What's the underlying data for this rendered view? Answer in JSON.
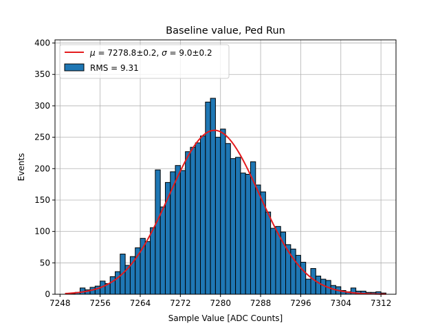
{
  "chart_data": {
    "type": "bar",
    "title": "Baseline value, Ped Run",
    "xlabel": "Sample Value [ADC Counts]",
    "ylabel": "Events",
    "xlim": [
      7247,
      7315
    ],
    "ylim": [
      0,
      405
    ],
    "xticks": [
      7248,
      7256,
      7264,
      7272,
      7280,
      7288,
      7296,
      7304,
      7312
    ],
    "yticks": [
      0,
      50,
      100,
      150,
      200,
      250,
      300,
      350,
      400
    ],
    "grid": true,
    "legend_position": "top-left",
    "histogram": {
      "name": "RMS = 9.31",
      "color": "#1f77b4",
      "edgecolor": "#000000",
      "bin_start": 7248,
      "bin_width": 1,
      "counts": [
        0,
        0,
        1,
        3,
        10,
        7,
        11,
        13,
        21,
        17,
        28,
        36,
        64,
        46,
        60,
        74,
        89,
        84,
        106,
        198,
        139,
        178,
        195,
        205,
        197,
        227,
        234,
        241,
        252,
        306,
        312,
        250,
        263,
        240,
        216,
        218,
        193,
        191,
        211,
        174,
        163,
        131,
        105,
        108,
        99,
        79,
        72,
        62,
        51,
        24,
        41,
        29,
        24,
        22,
        14,
        12,
        6,
        4,
        10,
        5,
        5,
        3,
        3,
        4,
        2,
        0
      ]
    },
    "fit": {
      "name": "$\\mu = 7278.8\\pm0.2$, $\\sigma = 9.0\\pm0.2$",
      "label_parts": [
        "μ",
        " = 7278.8±0.2, ",
        "σ",
        " = 9.0±0.2"
      ],
      "color": "#e41a1c",
      "mu": 7278.8,
      "sigma": 9.0,
      "amplitude": 261,
      "x_range": [
        7249,
        7313
      ]
    }
  }
}
